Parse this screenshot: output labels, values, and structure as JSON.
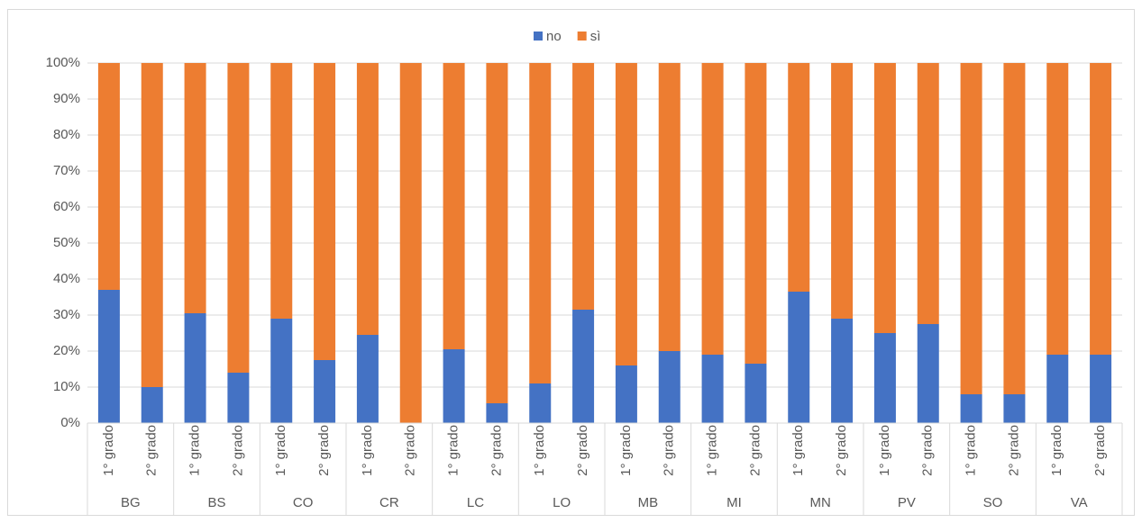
{
  "chart_data": {
    "type": "stacked_bar",
    "groups": [
      "BG",
      "BS",
      "CO",
      "CR",
      "LC",
      "LO",
      "MB",
      "MI",
      "MN",
      "PV",
      "SO",
      "VA"
    ],
    "categories": [
      "1° grado",
      "2° grado",
      "1° grado",
      "2° grado",
      "1° grado",
      "2° grado",
      "1° grado",
      "2° grado",
      "1° grado",
      "2° grado",
      "1° grado",
      "2° grado",
      "1° grado",
      "2° grado",
      "1° grado",
      "2° grado",
      "1° grado",
      "2° grado",
      "1° grado",
      "2° grado",
      "1° grado",
      "2° grado",
      "1° grado",
      "2° grado"
    ],
    "series": [
      {
        "name": "no",
        "color": "#4472c4",
        "values": [
          37,
          10,
          30.5,
          14,
          29,
          17.5,
          24.5,
          0,
          20.5,
          5.5,
          11,
          31.5,
          16,
          20,
          19,
          16.5,
          36.5,
          29,
          25,
          27.5,
          8,
          8,
          19,
          19
        ]
      },
      {
        "name": "sì",
        "color": "#ed7d31",
        "values": [
          63,
          90,
          69.5,
          86,
          71,
          82.5,
          75.5,
          100,
          79.5,
          94.5,
          89,
          68.5,
          84,
          80,
          81,
          83.5,
          63.5,
          71,
          75,
          72.5,
          92,
          92,
          81,
          81
        ]
      }
    ],
    "ylim": [
      0,
      100
    ],
    "yticks": [
      {
        "value": 0,
        "label": "0%"
      },
      {
        "value": 10,
        "label": "10%"
      },
      {
        "value": 20,
        "label": "20%"
      },
      {
        "value": 30,
        "label": "30%"
      },
      {
        "value": 40,
        "label": "40%"
      },
      {
        "value": 50,
        "label": "50%"
      },
      {
        "value": 60,
        "label": "60%"
      },
      {
        "value": 70,
        "label": "70%"
      },
      {
        "value": 80,
        "label": "80%"
      },
      {
        "value": 90,
        "label": "90%"
      },
      {
        "value": 100,
        "label": "100%"
      }
    ],
    "grid": true,
    "legend": "top"
  }
}
